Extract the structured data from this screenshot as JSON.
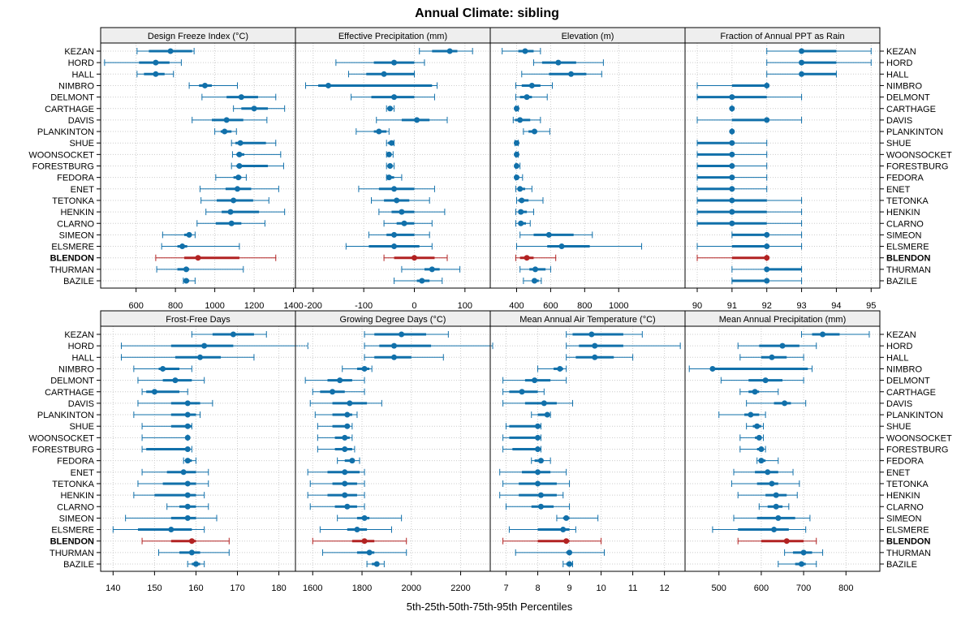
{
  "title": "Annual Climate: sibling",
  "xlabel": "5th-25th-50th-75th-95th Percentiles",
  "colors": {
    "normal": "#1170aa",
    "highlight": "#b22222",
    "strip_bg": "#eeeeee",
    "grid": "#cccccc"
  },
  "sites": [
    "KEZAN",
    "HORD",
    "HALL",
    "NIMBRO",
    "DELMONT",
    "CARTHAGE",
    "DAVIS",
    "PLANKINTON",
    "SHUE",
    "WOONSOCKET",
    "FORESTBURG",
    "FEDORA",
    "ENET",
    "TETONKA",
    "HENKIN",
    "CLARNO",
    "SIMEON",
    "ELSMERE",
    "BLENDON",
    "THURMAN",
    "BAZILE"
  ],
  "highlight_site": "BLENDON",
  "chart_data": [
    {
      "type": "dotplot",
      "title": "Design Freeze Index (°C)",
      "xlim": [
        420,
        1410
      ],
      "ticks": [
        600,
        800,
        1000,
        1200,
        1400
      ],
      "values": [
        [
          605,
          665,
          775,
          885,
          895
        ],
        [
          440,
          615,
          700,
          770,
          830
        ],
        [
          605,
          640,
          700,
          745,
          790
        ],
        [
          870,
          920,
          950,
          985,
          1115
        ],
        [
          935,
          1060,
          1135,
          1220,
          1310
        ],
        [
          1095,
          1135,
          1200,
          1270,
          1355
        ],
        [
          885,
          985,
          1060,
          1145,
          1265
        ],
        [
          1000,
          1030,
          1050,
          1085,
          1110
        ],
        [
          1085,
          1105,
          1130,
          1260,
          1310
        ],
        [
          1090,
          1110,
          1125,
          1150,
          1335
        ],
        [
          1085,
          1110,
          1125,
          1270,
          1350
        ],
        [
          1005,
          1095,
          1120,
          1135,
          1160
        ],
        [
          925,
          1055,
          1115,
          1185,
          1325
        ],
        [
          930,
          1010,
          1095,
          1195,
          1275
        ],
        [
          955,
          1035,
          1080,
          1225,
          1355
        ],
        [
          910,
          1005,
          1085,
          1135,
          1255
        ],
        [
          735,
          845,
          870,
          880,
          900
        ],
        [
          730,
          810,
          835,
          860,
          1125
        ],
        [
          700,
          845,
          915,
          1125,
          1310
        ],
        [
          705,
          810,
          855,
          870,
          1145
        ],
        [
          840,
          850,
          855,
          870,
          900
        ]
      ]
    },
    {
      "type": "dotplot",
      "title": "Effective Precipitation (mm)",
      "xlim": [
        -235,
        150
      ],
      "ticks": [
        -200,
        -100,
        0,
        100
      ],
      "values": [
        [
          10,
          35,
          70,
          85,
          115
        ],
        [
          -155,
          -80,
          -40,
          0,
          20
        ],
        [
          -130,
          -95,
          -60,
          0,
          0
        ],
        [
          -215,
          -190,
          -170,
          35,
          45
        ],
        [
          -125,
          -85,
          -40,
          0,
          40
        ],
        [
          -55,
          -52,
          -48,
          -44,
          -40
        ],
        [
          -75,
          -25,
          5,
          30,
          65
        ],
        [
          -115,
          -80,
          -70,
          -55,
          -50
        ],
        [
          -55,
          -52,
          -45,
          -42,
          -40
        ],
        [
          -55,
          -52,
          -50,
          -46,
          -42
        ],
        [
          -55,
          -52,
          -48,
          -44,
          -40
        ],
        [
          -55,
          -52,
          -50,
          -40,
          -25
        ],
        [
          -110,
          -70,
          -40,
          0,
          40
        ],
        [
          -85,
          -60,
          -35,
          -10,
          30
        ],
        [
          -70,
          -45,
          -25,
          0,
          60
        ],
        [
          -60,
          -35,
          -20,
          0,
          35
        ],
        [
          -90,
          -55,
          -40,
          0,
          30
        ],
        [
          -135,
          -90,
          -40,
          10,
          35
        ],
        [
          -60,
          -40,
          0,
          40,
          65
        ],
        [
          -25,
          20,
          35,
          50,
          90
        ],
        [
          -40,
          5,
          15,
          30,
          55
        ]
      ]
    },
    {
      "type": "dotplot",
      "title": "Elevation (m)",
      "xlim": [
        245,
        1390
      ],
      "ticks": [
        400,
        600,
        800,
        1000
      ],
      "values": [
        [
          315,
          410,
          450,
          500,
          540
        ],
        [
          500,
          550,
          645,
          750,
          910
        ],
        [
          430,
          590,
          720,
          810,
          900
        ],
        [
          395,
          430,
          490,
          540,
          610
        ],
        [
          395,
          420,
          460,
          490,
          580
        ],
        [
          395,
          400,
          400,
          405,
          410
        ],
        [
          380,
          390,
          420,
          480,
          540
        ],
        [
          440,
          470,
          505,
          520,
          595
        ],
        [
          390,
          395,
          400,
          405,
          410
        ],
        [
          395,
          400,
          400,
          405,
          410
        ],
        [
          395,
          400,
          400,
          410,
          420
        ],
        [
          395,
          398,
          400,
          410,
          435
        ],
        [
          395,
          410,
          420,
          450,
          490
        ],
        [
          400,
          410,
          430,
          470,
          555
        ],
        [
          395,
          410,
          425,
          460,
          500
        ],
        [
          395,
          410,
          425,
          455,
          480
        ],
        [
          420,
          500,
          590,
          735,
          845
        ],
        [
          400,
          580,
          665,
          830,
          1135
        ],
        [
          395,
          420,
          460,
          500,
          630
        ],
        [
          420,
          475,
          510,
          570,
          600
        ],
        [
          440,
          490,
          505,
          530,
          545
        ]
      ]
    },
    {
      "type": "dotplot",
      "title": "Fraction of Annual PPT as Rain",
      "xlim": [
        89.65,
        95.25
      ],
      "ticks": [
        90,
        91,
        92,
        93,
        94,
        95
      ],
      "values": [
        [
          92,
          93,
          93,
          94,
          95
        ],
        [
          92,
          93,
          93,
          94,
          95
        ],
        [
          92,
          93,
          93,
          94,
          94
        ],
        [
          90,
          91,
          92,
          92,
          92
        ],
        [
          90,
          90,
          91,
          92,
          93
        ],
        [
          91,
          91,
          91,
          91,
          91
        ],
        [
          90,
          91,
          92,
          92,
          93
        ],
        [
          91,
          91,
          91,
          91,
          91
        ],
        [
          90,
          90,
          91,
          91,
          92
        ],
        [
          90,
          90,
          91,
          91,
          92
        ],
        [
          90,
          90,
          91,
          91,
          92
        ],
        [
          90,
          90,
          91,
          91,
          92
        ],
        [
          90,
          90,
          91,
          91,
          92
        ],
        [
          90,
          90,
          91,
          92,
          93
        ],
        [
          90,
          90,
          91,
          92,
          93
        ],
        [
          90,
          90,
          91,
          92,
          93
        ],
        [
          91,
          91,
          92,
          92,
          93
        ],
        [
          90,
          91,
          92,
          92,
          93
        ],
        [
          90,
          91,
          92,
          92,
          92
        ],
        [
          91,
          92,
          92,
          93,
          93
        ],
        [
          91,
          91,
          92,
          92,
          93
        ]
      ]
    },
    {
      "type": "dotplot",
      "title": "Frost-Free Days",
      "xlim": [
        137,
        184
      ],
      "ticks": [
        140,
        150,
        160,
        170,
        180
      ],
      "values": [
        [
          159,
          164,
          169,
          174,
          177
        ],
        [
          142,
          154,
          162,
          169,
          187
        ],
        [
          142,
          155,
          161,
          166,
          174
        ],
        [
          145,
          151,
          152,
          156,
          159
        ],
        [
          146,
          152,
          155,
          159,
          162
        ],
        [
          147,
          148,
          150,
          156,
          158
        ],
        [
          146,
          154,
          158,
          161,
          164
        ],
        [
          145,
          154,
          158,
          160,
          161
        ],
        [
          147,
          154,
          158,
          159,
          159
        ],
        [
          147,
          158,
          158,
          158,
          158
        ],
        [
          147,
          148,
          158,
          158,
          159
        ],
        [
          157,
          158,
          158,
          159,
          160
        ],
        [
          147,
          153,
          157,
          160,
          163
        ],
        [
          146,
          152,
          158,
          160,
          163
        ],
        [
          145,
          150,
          158,
          160,
          162
        ],
        [
          153,
          156,
          158,
          160,
          163
        ],
        [
          143,
          154,
          158,
          160,
          165
        ],
        [
          140,
          146,
          154,
          159,
          162
        ],
        [
          147,
          154,
          159,
          160,
          168
        ],
        [
          151,
          156,
          159,
          161,
          168
        ],
        [
          158,
          159,
          160,
          161,
          162
        ]
      ]
    },
    {
      "type": "dotplot",
      "title": "Growing Degree Days (°C)",
      "xlim": [
        1530,
        2320
      ],
      "ticks": [
        1600,
        1800,
        2000,
        2200
      ],
      "values": [
        [
          1810,
          1850,
          1960,
          2060,
          2150
        ],
        [
          1810,
          1870,
          1930,
          2080,
          2330
        ],
        [
          1810,
          1850,
          1930,
          2000,
          2130
        ],
        [
          1720,
          1780,
          1810,
          1830,
          1840
        ],
        [
          1570,
          1660,
          1710,
          1760,
          1810
        ],
        [
          1600,
          1630,
          1680,
          1730,
          1810
        ],
        [
          1590,
          1680,
          1750,
          1820,
          1880
        ],
        [
          1610,
          1680,
          1740,
          1760,
          1780
        ],
        [
          1620,
          1680,
          1740,
          1750,
          1760
        ],
        [
          1620,
          1690,
          1730,
          1750,
          1760
        ],
        [
          1620,
          1690,
          1730,
          1760,
          1770
        ],
        [
          1700,
          1730,
          1760,
          1770,
          1790
        ],
        [
          1580,
          1660,
          1730,
          1790,
          1810
        ],
        [
          1590,
          1680,
          1730,
          1780,
          1810
        ],
        [
          1580,
          1660,
          1730,
          1780,
          1810
        ],
        [
          1590,
          1690,
          1740,
          1780,
          1810
        ],
        [
          1700,
          1780,
          1810,
          1830,
          1960
        ],
        [
          1630,
          1740,
          1780,
          1820,
          1920
        ],
        [
          1600,
          1760,
          1810,
          1850,
          1980
        ],
        [
          1640,
          1780,
          1830,
          1850,
          1980
        ],
        [
          1820,
          1840,
          1860,
          1870,
          1890
        ]
      ]
    },
    {
      "type": "dotplot",
      "title": "Mean Annual Air Temperature (°C)",
      "xlim": [
        6.5,
        12.65
      ],
      "ticks": [
        7,
        8,
        9,
        10,
        11,
        12
      ],
      "values": [
        [
          8.9,
          9.1,
          9.7,
          10.7,
          11.3
        ],
        [
          8.9,
          9.3,
          9.8,
          10.7,
          12.5
        ],
        [
          8.9,
          9.2,
          9.8,
          10.4,
          11.0
        ],
        [
          8.0,
          8.5,
          8.7,
          8.8,
          8.9
        ],
        [
          6.9,
          7.6,
          7.9,
          8.4,
          8.9
        ],
        [
          6.9,
          7.1,
          7.5,
          8.0,
          8.2
        ],
        [
          6.9,
          7.6,
          8.2,
          8.6,
          9.1
        ],
        [
          7.8,
          8.0,
          8.3,
          8.4,
          8.4
        ],
        [
          7.0,
          7.1,
          8.0,
          8.1,
          8.1
        ],
        [
          6.9,
          7.1,
          8.0,
          8.0,
          8.1
        ],
        [
          6.9,
          7.2,
          8.0,
          8.1,
          8.1
        ],
        [
          7.8,
          7.9,
          8.1,
          8.1,
          8.4
        ],
        [
          6.8,
          7.5,
          8.0,
          8.4,
          8.9
        ],
        [
          6.9,
          7.4,
          8.0,
          8.6,
          9.0
        ],
        [
          6.8,
          7.4,
          8.1,
          8.6,
          8.8
        ],
        [
          7.0,
          7.8,
          8.1,
          8.5,
          9.0
        ],
        [
          8.6,
          8.8,
          8.9,
          9.0,
          9.9
        ],
        [
          7.1,
          8.0,
          8.8,
          9.0,
          9.2
        ],
        [
          6.9,
          8.0,
          8.9,
          9.0,
          10.0
        ],
        [
          7.3,
          8.9,
          9.0,
          9.0,
          10.1
        ],
        [
          8.8,
          8.9,
          9.0,
          9.1,
          9.1
        ]
      ]
    },
    {
      "type": "dotplot",
      "title": "Mean Annual Precipitation (mm)",
      "xlim": [
        420,
        880
      ],
      "ticks": [
        500,
        600,
        700,
        800
      ],
      "values": [
        [
          695,
          720,
          745,
          785,
          855
        ],
        [
          545,
          595,
          650,
          690,
          730
        ],
        [
          550,
          600,
          625,
          660,
          700
        ],
        [
          430,
          480,
          485,
          710,
          720
        ],
        [
          505,
          570,
          610,
          650,
          700
        ],
        [
          550,
          570,
          585,
          595,
          640
        ],
        [
          565,
          630,
          655,
          670,
          705
        ],
        [
          500,
          560,
          575,
          595,
          610
        ],
        [
          565,
          580,
          590,
          600,
          605
        ],
        [
          550,
          585,
          595,
          600,
          605
        ],
        [
          550,
          590,
          600,
          605,
          610
        ],
        [
          590,
          595,
          600,
          610,
          640
        ],
        [
          535,
          585,
          615,
          640,
          675
        ],
        [
          530,
          590,
          625,
          640,
          690
        ],
        [
          545,
          610,
          635,
          660,
          685
        ],
        [
          595,
          615,
          635,
          650,
          665
        ],
        [
          535,
          590,
          640,
          680,
          715
        ],
        [
          485,
          545,
          630,
          665,
          705
        ],
        [
          545,
          600,
          660,
          700,
          730
        ],
        [
          655,
          675,
          700,
          720,
          745
        ],
        [
          640,
          680,
          695,
          705,
          730
        ]
      ]
    }
  ]
}
